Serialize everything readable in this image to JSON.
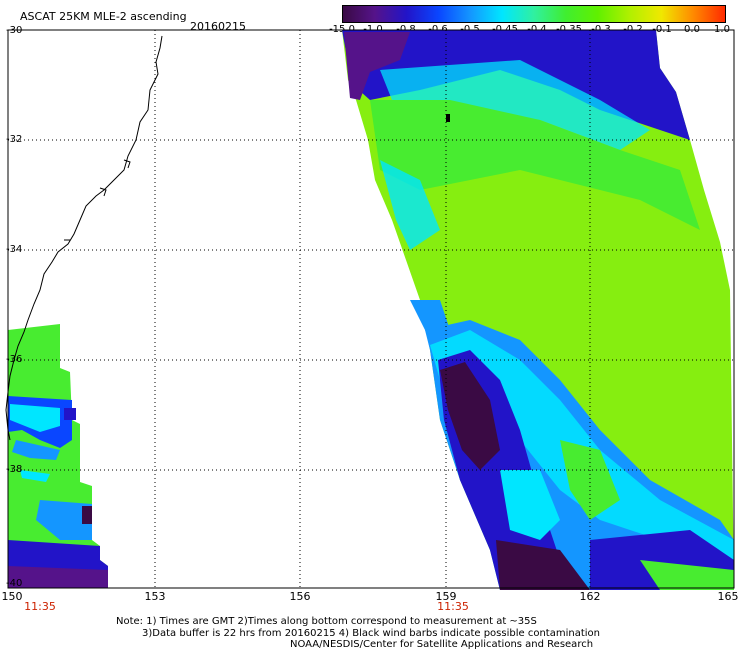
{
  "title": "ASCAT 25KM MLE-2 ascending",
  "date": "20160215",
  "colorbar": {
    "labels": [
      "-15.0",
      "-1.0",
      "-0.8",
      "-0.6",
      "-0.5",
      "-0.45",
      "-0.4",
      "-0.35",
      "-0.3",
      "-0.2",
      "-0.1",
      "0.0",
      "1.0"
    ],
    "colors": [
      "#3a0a44",
      "#55138a",
      "#2214c8",
      "#0a46ff",
      "#1496ff",
      "#00e6ff",
      "#30f0a0",
      "#40ee30",
      "#60f000",
      "#b0f000",
      "#f0e800",
      "#ff8a00",
      "#ff2a00"
    ]
  },
  "axes": {
    "lat_labels": [
      "-30",
      "-32",
      "-34",
      "-36",
      "-38",
      "-40"
    ],
    "lon_labels": [
      "150",
      "153",
      "156",
      "159",
      "162",
      "165"
    ],
    "time_labels": [
      "11:35",
      "11:35"
    ]
  },
  "notes": {
    "line1": "Note: 1) Times are GMT 2)Times along bottom correspond to measurement at ~35S",
    "line2": "3)Data buffer is 22 hrs from 20160215 4) Black wind barbs indicate possible contamination",
    "line3": "NOAA/NESDIS/Center for Satellite Applications and Research"
  }
}
